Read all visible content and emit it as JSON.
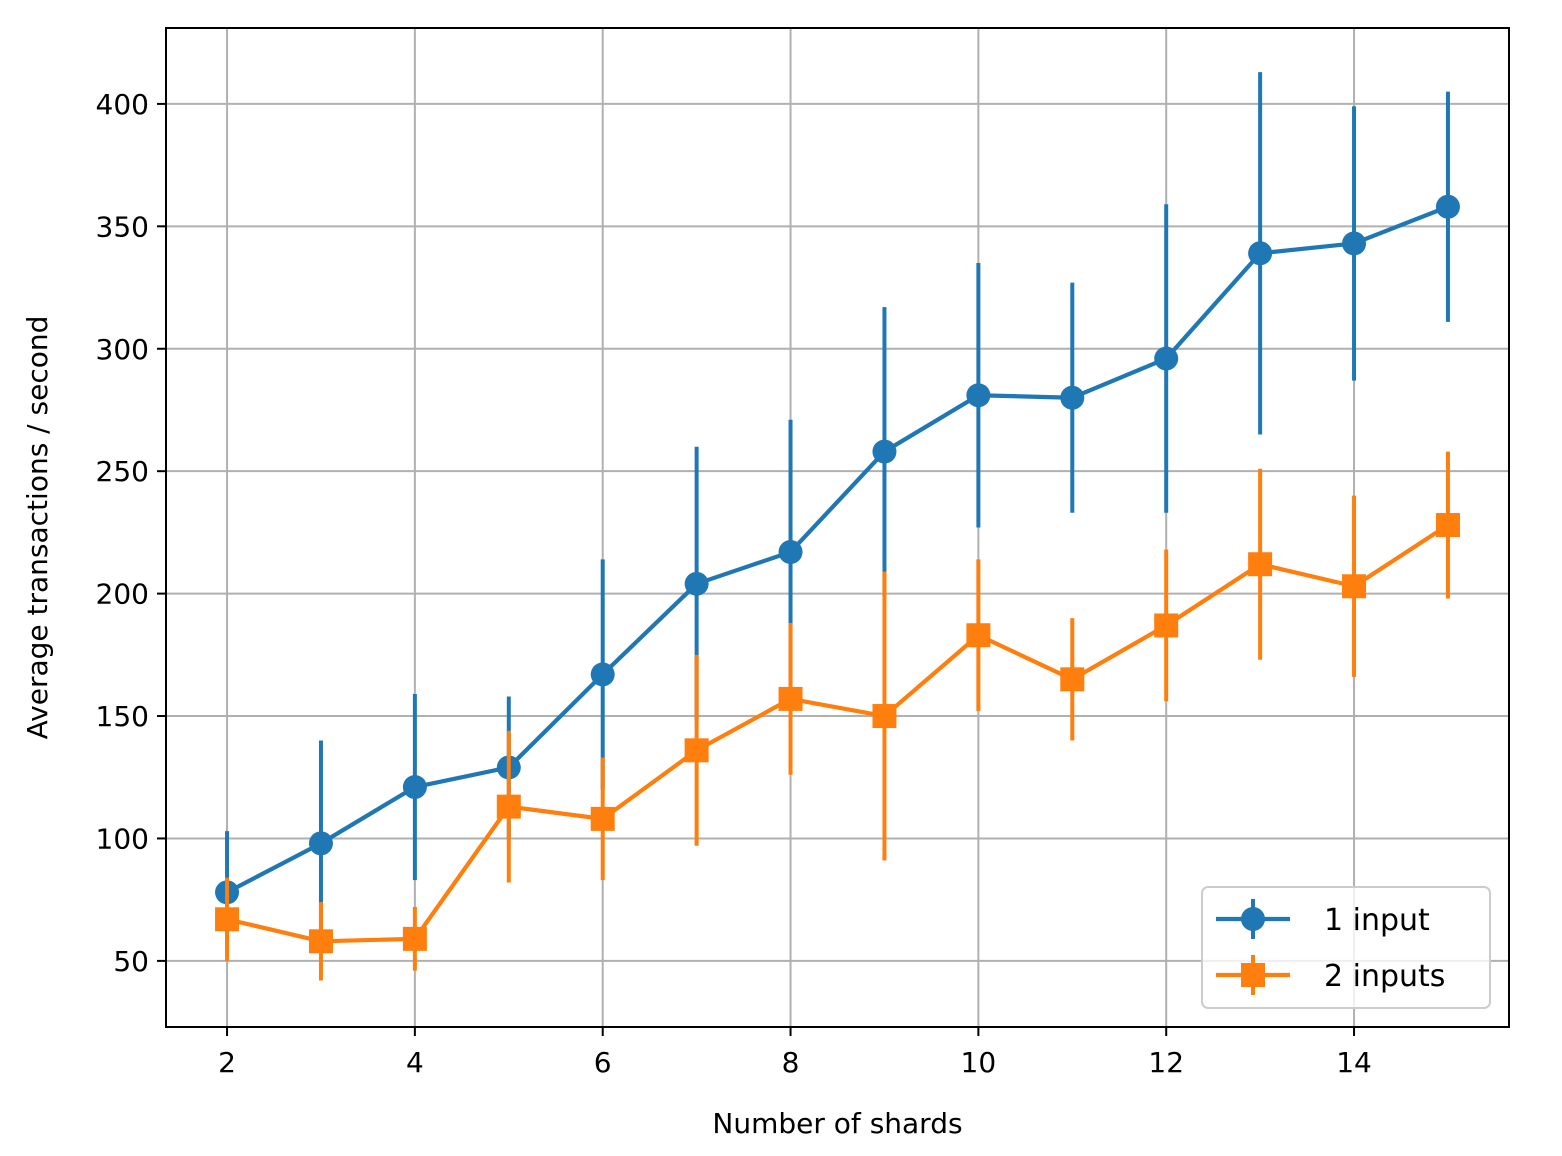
{
  "chart_data": {
    "type": "line",
    "xlabel": "Number of shards",
    "ylabel": "Average transactions / second",
    "xlim": [
      1.35,
      15.65
    ],
    "ylim": [
      23,
      431
    ],
    "x_ticks": [
      2,
      4,
      6,
      8,
      10,
      12,
      14
    ],
    "y_ticks": [
      50,
      100,
      150,
      200,
      250,
      300,
      350,
      400
    ],
    "grid": true,
    "legend_position": "lower-right",
    "x": [
      2,
      3,
      4,
      5,
      6,
      7,
      8,
      9,
      10,
      11,
      12,
      13,
      14,
      15
    ],
    "series": [
      {
        "name": "1 input",
        "color": "#1f77b4",
        "marker": "circle",
        "values": [
          78,
          98,
          121,
          129,
          167,
          204,
          217,
          258,
          281,
          280,
          296,
          339,
          343,
          358
        ],
        "error": [
          25,
          42,
          38,
          29,
          47,
          56,
          54,
          59,
          54,
          47,
          63,
          74,
          56,
          47
        ]
      },
      {
        "name": "2 inputs",
        "color": "#ff7f0e",
        "marker": "square",
        "values": [
          67,
          58,
          59,
          113,
          108,
          136,
          157,
          150,
          183,
          165,
          187,
          212,
          203,
          228
        ],
        "error": [
          17,
          16,
          13,
          31,
          25,
          39,
          31,
          59,
          31,
          25,
          31,
          39,
          37,
          30
        ]
      }
    ]
  }
}
